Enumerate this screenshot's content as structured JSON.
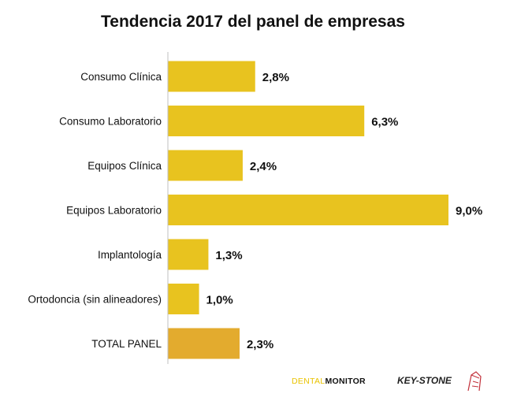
{
  "colors": {
    "bar": "#e8c31f",
    "bar_total": "#e3ab2e",
    "axis": "#bfbfbf",
    "text": "#111111"
  },
  "logos": {
    "dental_monitor_part1": "DENTAL",
    "dental_monitor_part2": "MONITOR",
    "keystone": "KEY-STONE",
    "keystone_mark_icon": "building-sketch-icon"
  },
  "chart_data": {
    "type": "bar",
    "orientation": "horizontal",
    "title": "Tendencia 2017 del panel de empresas",
    "categories": [
      "Consumo Clínica",
      "Consumo Laboratorio",
      "Equipos Clínica",
      "Equipos Laboratorio",
      "Implantología",
      "Ortodoncia (sin alineadores)",
      "TOTAL PANEL"
    ],
    "values": [
      2.8,
      6.3,
      2.4,
      9.0,
      1.3,
      1.0,
      2.3
    ],
    "value_labels": [
      "2,8%",
      "6,3%",
      "2,4%",
      "9,0%",
      "1,3%",
      "1,0%",
      "2,3%"
    ],
    "highlight_category": "TOTAL PANEL",
    "xlim": [
      0,
      9.0
    ],
    "xlabel": "",
    "ylabel": "",
    "grid": false,
    "legend": "none"
  }
}
